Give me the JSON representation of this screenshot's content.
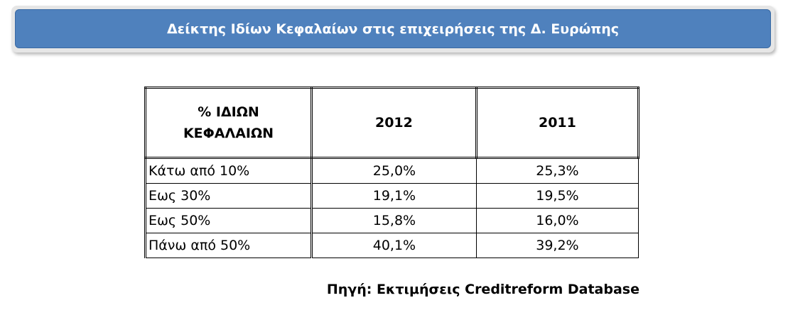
{
  "header": {
    "title": "Δείκτης Ιδίων Κεφαλαίων στις επιχειρήσεις της Δ. Ευρώπης"
  },
  "table": {
    "columns": [
      "% ΙΔΙΩΝ\nΚΕΦΑΛΑΙΩΝ",
      "2012",
      "2011"
    ],
    "rows": [
      [
        "Κάτω από 10%",
        "25,0%",
        "25,3%"
      ],
      [
        "Εως 30%",
        "19,1%",
        "19,5%"
      ],
      [
        "Εως 50%",
        "15,8%",
        "16,0%"
      ],
      [
        "Πάνω από 50%",
        "40,1%",
        "39,2%"
      ]
    ]
  },
  "source": "Πηγή: Εκτιμήσεις Creditreform Database"
}
